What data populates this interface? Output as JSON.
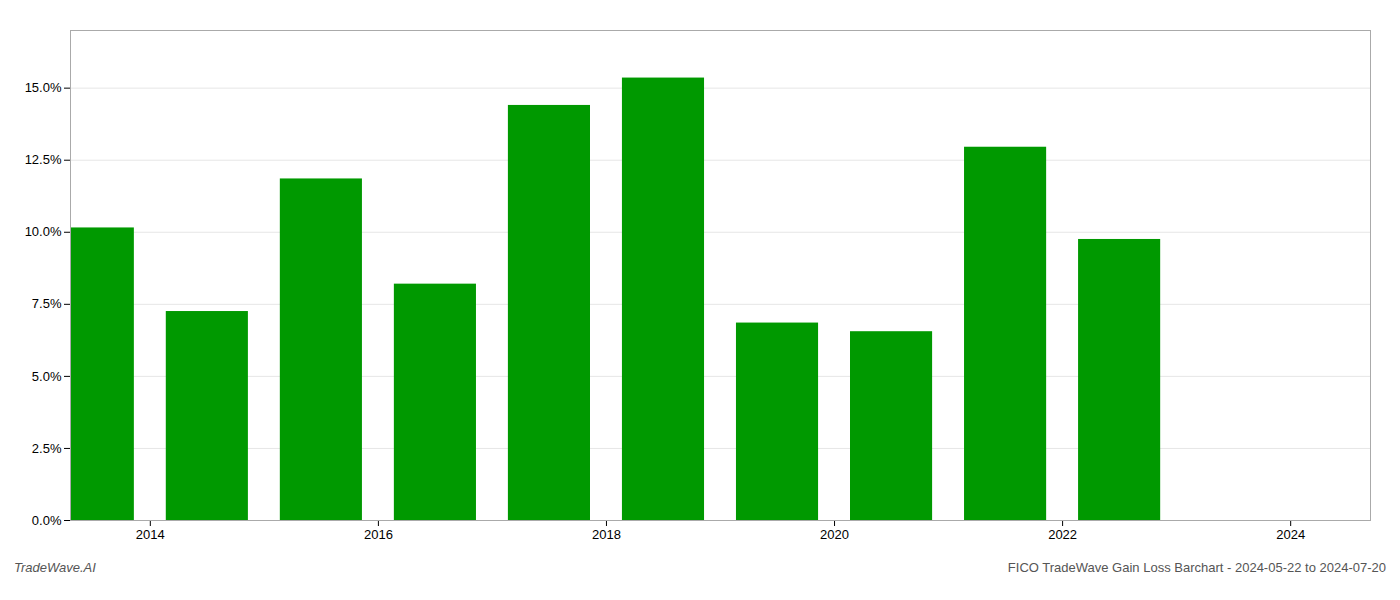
{
  "chart_data": {
    "type": "bar",
    "x": [
      2013,
      2014,
      2015,
      2016,
      2017,
      2018,
      2019,
      2020,
      2021,
      2022
    ],
    "values": [
      0.1015,
      0.0725,
      0.1185,
      0.082,
      0.144,
      0.1535,
      0.0685,
      0.0655,
      0.1295,
      0.0975
    ],
    "color": "#009900",
    "xlim": [
      2012.8,
      2024.2
    ],
    "xticks": [
      {
        "value": 2013.5,
        "label": "2014"
      },
      {
        "value": 2015.5,
        "label": "2016"
      },
      {
        "value": 2017.5,
        "label": "2018"
      },
      {
        "value": 2019.5,
        "label": "2020"
      },
      {
        "value": 2021.5,
        "label": "2022"
      },
      {
        "value": 2023.5,
        "label": "2024"
      }
    ],
    "ylim": [
      0,
      0.17
    ],
    "yticks": [
      {
        "value": 0.0,
        "label": "0.0%"
      },
      {
        "value": 0.025,
        "label": "2.5%"
      },
      {
        "value": 0.05,
        "label": "5.0%"
      },
      {
        "value": 0.075,
        "label": "7.5%"
      },
      {
        "value": 0.1,
        "label": "10.0%"
      },
      {
        "value": 0.125,
        "label": "12.5%"
      },
      {
        "value": 0.15,
        "label": "15.0%"
      }
    ],
    "grid": "y",
    "annotations": [
      "TradeWave.AI",
      "FICO TradeWave Gain Loss Barchart - 2024-05-22 to 2024-07-20"
    ]
  }
}
